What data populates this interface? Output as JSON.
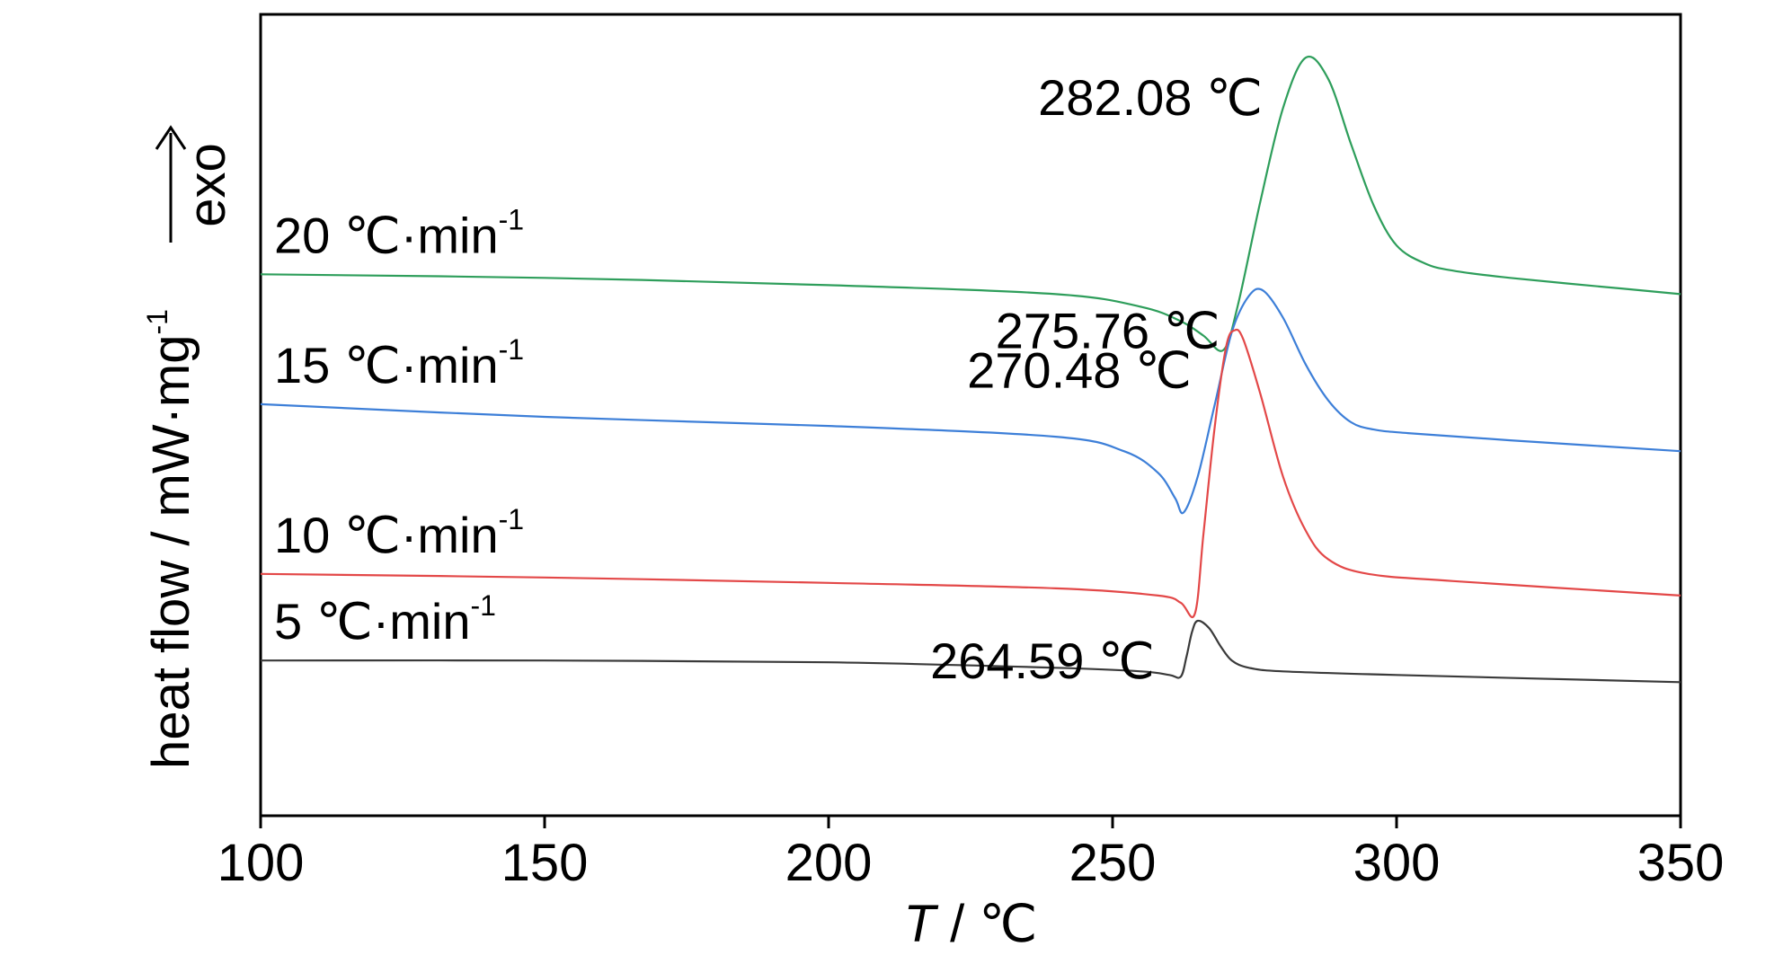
{
  "chart_data": {
    "type": "line",
    "title": "",
    "xlabel_italic": "T",
    "xlabel_rest": " / ℃",
    "ylabel": "heat flow / mW·mg",
    "ylabel_sup": "-1",
    "y_indicator": "exo",
    "xlim": [
      100,
      350
    ],
    "xticks": [
      "100",
      "150",
      "200",
      "250",
      "300",
      "350"
    ],
    "y_ticks_shown": false,
    "grid": false,
    "legend": "none (series labelled in-plot)",
    "series": [
      {
        "name": "20 ℃·min",
        "name_sup": "-1",
        "color": "#2e9e5b",
        "peak_label": "282.08 ℃",
        "peak_x": 282.08,
        "x": [
          100,
          150,
          200,
          240,
          255,
          262,
          266,
          269.5,
          272,
          276,
          280,
          284,
          288,
          292,
          296,
          300,
          305,
          310,
          320,
          340,
          350
        ],
        "y": [
          38,
          37,
          35,
          32.5,
          29,
          25,
          21,
          17,
          29,
          58,
          84,
          98,
          92,
          74,
          57,
          46,
          41,
          39,
          37,
          34,
          32.5
        ]
      },
      {
        "name": "15 ℃·min",
        "name_sup": "-1",
        "color": "#3d7fd8",
        "peak_label": "275.76 ℃",
        "peak_x": 275.76,
        "x": [
          100,
          150,
          200,
          240,
          252,
          258,
          261,
          262.5,
          265,
          268,
          271,
          274,
          276.5,
          280,
          284,
          288,
          292,
          296,
          302,
          320,
          350
        ],
        "y": [
          2,
          -1.5,
          -4,
          -7,
          -11,
          -17,
          -24,
          -28,
          -18,
          2,
          22,
          32,
          33.5,
          26,
          13,
          3,
          -3,
          -5,
          -6,
          -8,
          -11
        ]
      },
      {
        "name": "10 ℃·min",
        "name_sup": "-1",
        "color": "#e34848",
        "peak_label": "270.48 ℃",
        "peak_x": 270.48,
        "x": [
          100,
          150,
          200,
          240,
          258,
          262,
          264.5,
          266,
          268,
          270,
          271.5,
          273,
          276,
          280,
          284,
          288,
          295,
          310,
          350
        ],
        "y": [
          -45,
          -46,
          -47.5,
          -49,
          -51,
          -53,
          -56,
          -34,
          -4,
          18,
          22.5,
          20,
          5,
          -18,
          -33,
          -41,
          -45,
          -47,
          -51
        ]
      },
      {
        "name": "5 ℃·min",
        "name_sup": "-1",
        "color": "#3a3a3a",
        "peak_label": "264.59 ℃",
        "peak_x": 264.59,
        "x": [
          100,
          150,
          200,
          240,
          255,
          260,
          262,
          263,
          264,
          265,
          267,
          269,
          271,
          274,
          280,
          300,
          350
        ],
        "y": [
          -69,
          -69,
          -69.5,
          -71,
          -72,
          -73,
          -73.5,
          -68,
          -61,
          -58,
          -60,
          -65,
          -69,
          -71,
          -72,
          -73,
          -75
        ]
      }
    ]
  }
}
